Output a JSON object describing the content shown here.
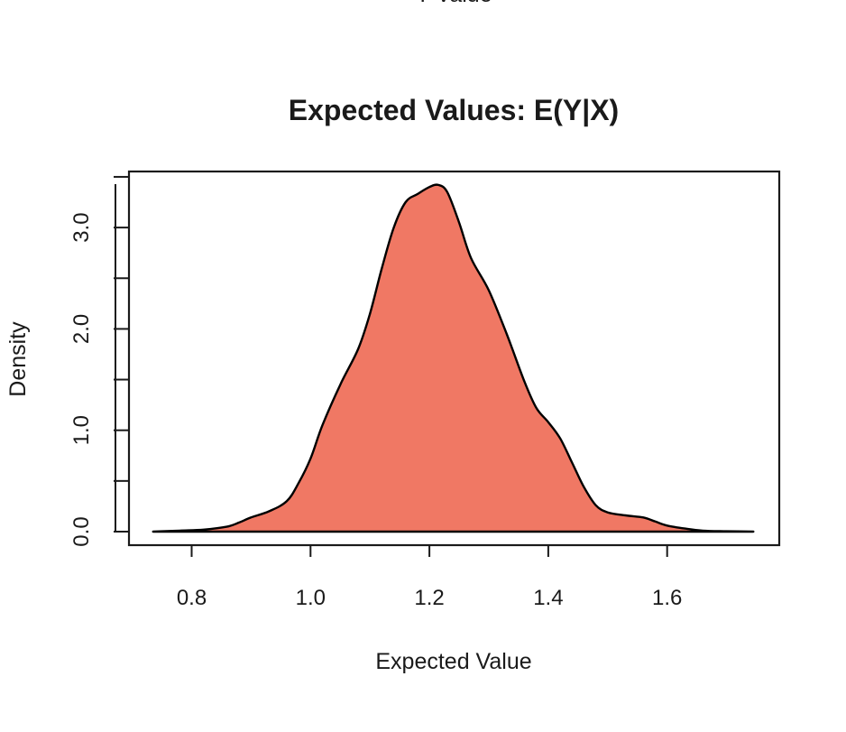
{
  "clipped_top_text": "Y Value",
  "chart_data": {
    "type": "area",
    "title": "Expected Values: E(Y|X)",
    "xlabel": "Expected Value",
    "ylabel": "Density",
    "xlim": [
      0.7,
      1.8
    ],
    "ylim": [
      -0.1,
      3.5
    ],
    "x_ticks": [
      0.8,
      1.0,
      1.2,
      1.4,
      1.6
    ],
    "x_tick_labels": [
      "0.8",
      "1.0",
      "1.2",
      "1.4",
      "1.6"
    ],
    "y_ticks": [
      0.0,
      1.0,
      2.0,
      3.0
    ],
    "y_tick_labels": [
      "0.0",
      "1.0",
      "2.0",
      "3.0"
    ],
    "y_minor_ticks": [
      0.5,
      1.5,
      2.5
    ],
    "grid": false,
    "legend": "none",
    "fill_color": "#F07864",
    "line_color": "#000000",
    "series": [
      {
        "x": [
          0.735,
          0.78,
          0.82,
          0.86,
          0.88,
          0.9,
          0.93,
          0.96,
          0.98,
          1.0,
          1.02,
          1.05,
          1.08,
          1.1,
          1.12,
          1.14,
          1.16,
          1.18,
          1.2,
          1.215,
          1.23,
          1.25,
          1.27,
          1.3,
          1.33,
          1.36,
          1.38,
          1.4,
          1.42,
          1.44,
          1.46,
          1.48,
          1.5,
          1.53,
          1.56,
          1.58,
          1.6,
          1.63,
          1.66,
          1.7,
          1.745
        ],
        "y": [
          0.0,
          0.01,
          0.02,
          0.05,
          0.09,
          0.14,
          0.2,
          0.3,
          0.48,
          0.72,
          1.05,
          1.45,
          1.8,
          2.15,
          2.6,
          3.0,
          3.25,
          3.33,
          3.4,
          3.42,
          3.35,
          3.05,
          2.7,
          2.38,
          1.95,
          1.48,
          1.22,
          1.08,
          0.92,
          0.68,
          0.44,
          0.26,
          0.19,
          0.16,
          0.14,
          0.1,
          0.06,
          0.03,
          0.01,
          0.004,
          0.0
        ]
      }
    ]
  }
}
